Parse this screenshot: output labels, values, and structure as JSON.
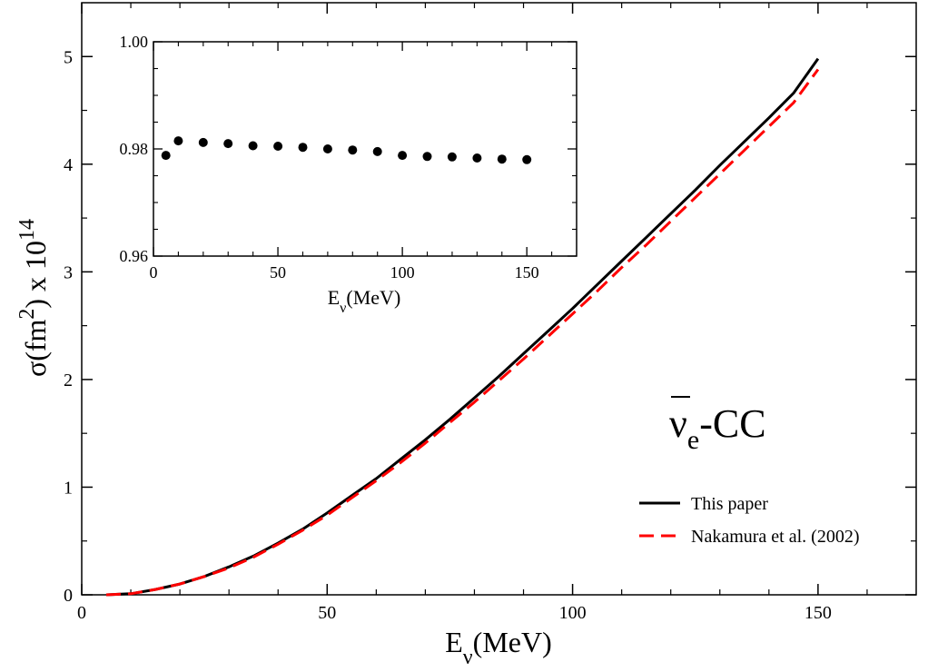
{
  "chart_data": [
    {
      "type": "line",
      "xlabel": {
        "base": "E",
        "sub": "ν",
        "tail": "(MeV)"
      },
      "ylabel": {
        "pre": "σ(fm",
        "sup": "2",
        "mid": ") x 10",
        "exp": "14"
      },
      "xlim": [
        0,
        170
      ],
      "ylim": [
        0,
        5.5
      ],
      "xticks": [
        0,
        50,
        100,
        150
      ],
      "yticks": [
        0,
        1,
        2,
        3,
        4,
        5
      ],
      "annotation": {
        "bar": "ν",
        "sub": "e",
        "tail": "-CC"
      },
      "legend_position": "bottom-right",
      "series": [
        {
          "name": "This paper",
          "color": "#000000",
          "dash": "solid",
          "x": [
            5,
            10,
            15,
            20,
            25,
            30,
            35,
            40,
            45,
            50,
            55,
            60,
            65,
            70,
            75,
            80,
            85,
            90,
            95,
            100,
            105,
            110,
            115,
            120,
            125,
            130,
            135,
            140,
            145,
            150
          ],
          "y": [
            0.0,
            0.01,
            0.05,
            0.1,
            0.17,
            0.26,
            0.36,
            0.48,
            0.61,
            0.76,
            0.92,
            1.08,
            1.26,
            1.44,
            1.63,
            1.83,
            2.03,
            2.24,
            2.45,
            2.66,
            2.88,
            3.1,
            3.32,
            3.54,
            3.76,
            3.99,
            4.21,
            4.43,
            4.66,
            4.98
          ]
        },
        {
          "name": "Nakamura et al. (2002)",
          "color": "#ff0000",
          "dash": "dashed",
          "x": [
            5,
            10,
            15,
            20,
            25,
            30,
            35,
            40,
            45,
            50,
            55,
            60,
            65,
            70,
            75,
            80,
            85,
            90,
            95,
            100,
            105,
            110,
            115,
            120,
            125,
            130,
            135,
            140,
            145,
            150
          ],
          "y": [
            0.0,
            0.01,
            0.05,
            0.1,
            0.17,
            0.25,
            0.35,
            0.47,
            0.6,
            0.74,
            0.9,
            1.06,
            1.23,
            1.41,
            1.6,
            1.79,
            1.99,
            2.19,
            2.4,
            2.61,
            2.82,
            3.04,
            3.25,
            3.47,
            3.69,
            3.91,
            4.13,
            4.35,
            4.57,
            4.88
          ]
        }
      ]
    },
    {
      "type": "scatter",
      "xlabel": {
        "base": "E",
        "sub": "ν",
        "tail": "(MeV)"
      },
      "xlim": [
        0,
        170
      ],
      "ylim": [
        0.96,
        1.0
      ],
      "xticks": [
        0,
        50,
        100,
        150
      ],
      "yticks": [
        0.96,
        0.98,
        1.0
      ],
      "ytick_labels": [
        "0.96",
        "0.98",
        "1.00"
      ],
      "series": [
        {
          "color": "#000000",
          "x": [
            5,
            10,
            20,
            30,
            40,
            50,
            60,
            70,
            80,
            90,
            100,
            110,
            120,
            130,
            140,
            150
          ],
          "y": [
            0.9788,
            0.9815,
            0.9812,
            0.981,
            0.9806,
            0.9805,
            0.9803,
            0.98,
            0.9798,
            0.9795,
            0.9788,
            0.9786,
            0.9785,
            0.9783,
            0.9781,
            0.978
          ]
        }
      ]
    }
  ]
}
